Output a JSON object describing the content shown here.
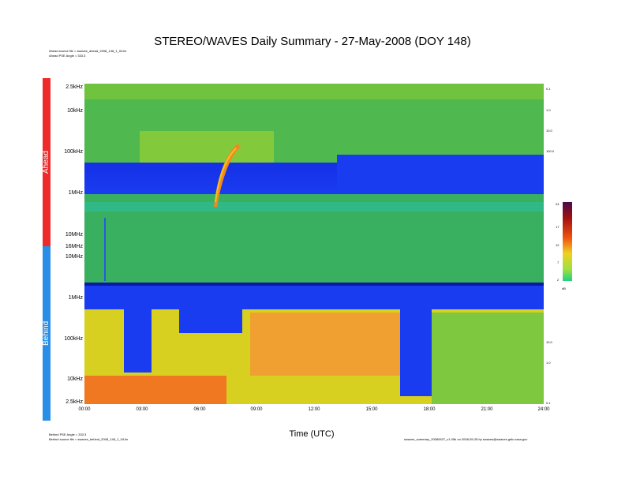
{
  "chart_data": [
    {
      "type": "heatmap",
      "panel": "Ahead",
      "title": "STEREO/WAVES Daily Summary - 27-May-2008 (DOY 148)",
      "xlabel": "Time (UTC)",
      "x_ticks": [
        "00:00",
        "03:00",
        "06:00",
        "09:00",
        "12:00",
        "15:00",
        "18:00",
        "21:00",
        "24:00"
      ],
      "y_ticks": [
        "2.5kHz",
        "10kHz",
        "100kHz",
        "1MHz",
        "10MHz",
        "16MHz"
      ],
      "right_ticks": [
        "0.1",
        "1.0",
        "10.0",
        "100.0"
      ],
      "source_file": "Ahead source file = swaves_ahead_2008_148_1_04.lin",
      "pse_angle": "Ahead PSE Angle = 333.3"
    },
    {
      "type": "heatmap",
      "panel": "Behind",
      "y_ticks": [
        "10MHz",
        "1MHz",
        "100kHz",
        "10kHz",
        "2.5kHz"
      ],
      "right_ticks": [
        "10.0",
        "1.0",
        "0.1"
      ],
      "source_file": "Behind source file = swaves_behind_2008_148_1_04.lin",
      "pse_angle": "Behind PSE Angle = 333.3"
    },
    {
      "type": "colorbar",
      "ticks": [
        "24",
        "17",
        "12",
        "7",
        "2"
      ],
      "unit": "dB"
    }
  ],
  "footer_right": "swaves_summary_20080527_v1.05b on 2008-05-28 by swaves@swaves.gsfc.nasa.gov",
  "colors": {
    "ahead_bar": "#ee2a2a",
    "behind_bar": "#2a8ee6"
  }
}
